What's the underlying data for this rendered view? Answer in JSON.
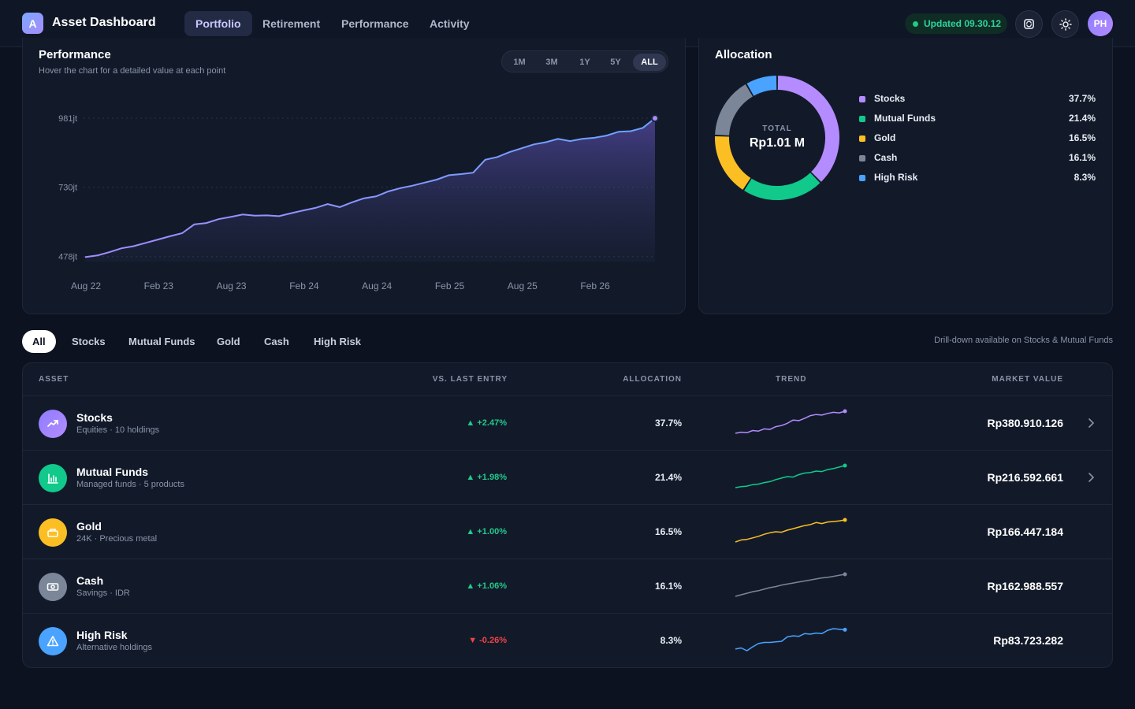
{
  "app": {
    "logo_letter": "A",
    "title": "Asset Dashboard",
    "nav_tabs": [
      {
        "label": "Portfolio",
        "active": true
      },
      {
        "label": "Retirement",
        "active": false
      },
      {
        "label": "Performance",
        "active": false
      },
      {
        "label": "Activity",
        "active": false
      }
    ],
    "updated_label": "Updated 09.30.12",
    "avatar_initials": "PH",
    "icons": [
      "sync-icon",
      "sun-icon"
    ]
  },
  "performance": {
    "title": "Performance",
    "subtitle": "Hover the chart for a detailed value at each point",
    "ranges": [
      "1M",
      "3M",
      "1Y",
      "5Y",
      "ALL"
    ],
    "active_range": "ALL"
  },
  "chart_data": {
    "type": "area",
    "title": "Performance",
    "x_ticks": [
      "Aug 22",
      "Feb 23",
      "Aug 23",
      "Feb 24",
      "Aug 24",
      "Feb 25",
      "Aug 25",
      "Feb 26"
    ],
    "y_ticks": [
      "981jt",
      "730jt",
      "478jt"
    ],
    "y_tick_values": [
      981,
      730,
      478
    ],
    "ylim": [
      460,
      1010
    ],
    "grid": "horizontal dotted",
    "color": "#7c9cf5",
    "series": [
      {
        "values": [
          476,
          482,
          494,
          508,
          516,
          528,
          540,
          552,
          563,
          595,
          600,
          614,
          622,
          631,
          627,
          628,
          625,
          636,
          646,
          655,
          669,
          658,
          675,
          690,
          697,
          715,
          727,
          736,
          747,
          758,
          774,
          778,
          783,
          830,
          840,
          858,
          872,
          886,
          894,
          906,
          898,
          906,
          910,
          918,
          932,
          934,
          946,
          981
        ]
      }
    ]
  },
  "allocation": {
    "title": "Allocation",
    "total_label": "TOTAL",
    "total_value": "Rp1.01 M",
    "segments": [
      {
        "name": "Stocks",
        "pct_label": "37.7%",
        "pct": 37.7,
        "color": "#b48cff"
      },
      {
        "name": "Mutual Funds",
        "pct_label": "21.4%",
        "pct": 21.4,
        "color": "#10c98b"
      },
      {
        "name": "Gold",
        "pct_label": "16.5%",
        "pct": 16.5,
        "color": "#fbbf24"
      },
      {
        "name": "Cash",
        "pct_label": "16.1%",
        "pct": 16.1,
        "color": "#7b8798"
      },
      {
        "name": "High Risk",
        "pct_label": "8.3%",
        "pct": 8.3,
        "color": "#4aa3ff"
      }
    ]
  },
  "filters": {
    "chips": [
      "All",
      "Stocks",
      "Mutual Funds",
      "Gold",
      "Cash",
      "High Risk"
    ],
    "active": "All",
    "note": "Drill-down available on Stocks & Mutual Funds"
  },
  "table": {
    "headers": {
      "asset": "ASSET",
      "change": "VS. LAST ENTRY",
      "allocation": "ALLOCATION",
      "trend": "TREND",
      "market_value": "MARKET VALUE"
    },
    "rows": [
      {
        "name": "Stocks",
        "desc": "Equities · 10 holdings",
        "change": "+2.47%",
        "direction": "up",
        "allocation": "37.7%",
        "market_value": "Rp380.910.126",
        "color": "#b48cff",
        "icon": "trending-up-icon",
        "drilldown": true,
        "trend": [
          10,
          12,
          11,
          15,
          14,
          18,
          17,
          22,
          24,
          28,
          34,
          33,
          37,
          42,
          44,
          43,
          46,
          48,
          47,
          50
        ]
      },
      {
        "name": "Mutual Funds",
        "desc": "Managed funds · 5 products",
        "change": "+1.98%",
        "direction": "up",
        "allocation": "21.4%",
        "market_value": "Rp216.592.661",
        "color": "#10c98b",
        "icon": "bar-chart-icon",
        "drilldown": true,
        "trend": [
          8,
          10,
          11,
          14,
          15,
          18,
          20,
          24,
          27,
          30,
          29,
          34,
          37,
          38,
          41,
          40,
          44,
          46,
          49,
          52
        ]
      },
      {
        "name": "Gold",
        "desc": "24K · Precious metal",
        "change": "+1.00%",
        "direction": "up",
        "allocation": "16.5%",
        "market_value": "Rp166.447.184",
        "color": "#fbbf24",
        "icon": "gold-bar-icon",
        "drilldown": false,
        "trend": [
          6,
          10,
          11,
          14,
          17,
          21,
          24,
          26,
          25,
          29,
          32,
          35,
          38,
          40,
          44,
          42,
          45,
          46,
          47,
          49
        ]
      },
      {
        "name": "Cash",
        "desc": "Savings · IDR",
        "change": "+1.06%",
        "direction": "up",
        "allocation": "16.1%",
        "market_value": "Rp162.988.557",
        "color": "#7b8798",
        "icon": "cash-icon",
        "drilldown": false,
        "trend": [
          6,
          9,
          12,
          15,
          17,
          20,
          23,
          25,
          28,
          30,
          32,
          34,
          36,
          38,
          40,
          42,
          43,
          45,
          47,
          49
        ]
      },
      {
        "name": "High Risk",
        "desc": "Alternative holdings",
        "change": "-0.26%",
        "direction": "down",
        "allocation": "8.3%",
        "market_value": "Rp83.723.282",
        "color": "#4aa3ff",
        "icon": "warning-icon",
        "drilldown": false,
        "trend": [
          18,
          20,
          15,
          22,
          28,
          30,
          30,
          31,
          32,
          40,
          42,
          41,
          46,
          45,
          47,
          46,
          52,
          55,
          54,
          53
        ]
      }
    ]
  }
}
